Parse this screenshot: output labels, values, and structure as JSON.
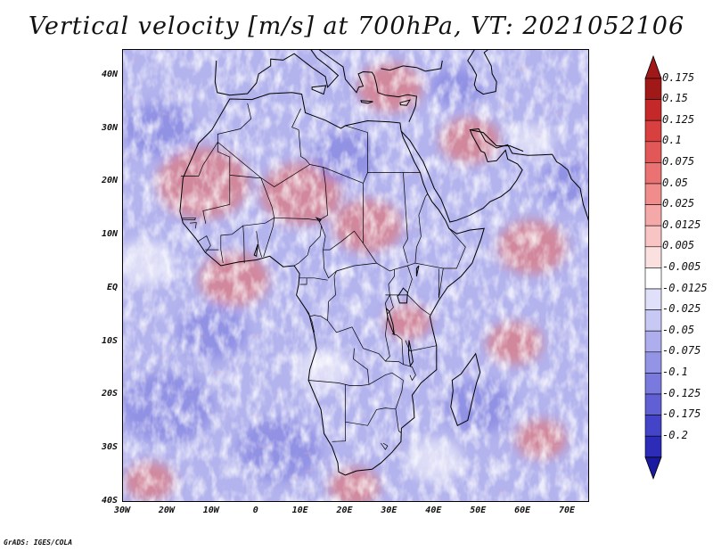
{
  "title": "Vertical velocity [m/s] at 700hPa, VT: 2021052106",
  "map": {
    "region": "Africa and surrounding oceans",
    "lat_range": [
      -40,
      45
    ],
    "lon_range": [
      -30,
      75
    ],
    "lat_ticks": [
      {
        "value": 40,
        "label": "40N"
      },
      {
        "value": 30,
        "label": "30N"
      },
      {
        "value": 20,
        "label": "20N"
      },
      {
        "value": 10,
        "label": "10N"
      },
      {
        "value": 0,
        "label": "EQ"
      },
      {
        "value": -10,
        "label": "10S"
      },
      {
        "value": -20,
        "label": "20S"
      },
      {
        "value": -30,
        "label": "30S"
      },
      {
        "value": -40,
        "label": "40S"
      }
    ],
    "lon_ticks": [
      {
        "value": -30,
        "label": "30W"
      },
      {
        "value": -20,
        "label": "20W"
      },
      {
        "value": -10,
        "label": "10W"
      },
      {
        "value": 0,
        "label": "0"
      },
      {
        "value": 10,
        "label": "10E"
      },
      {
        "value": 20,
        "label": "20E"
      },
      {
        "value": 30,
        "label": "30E"
      },
      {
        "value": 40,
        "label": "40E"
      },
      {
        "value": 50,
        "label": "50E"
      },
      {
        "value": 60,
        "label": "60E"
      },
      {
        "value": 70,
        "label": "70E"
      }
    ]
  },
  "colorbar": {
    "levels": [
      {
        "label": "0.175",
        "color": "#a01818"
      },
      {
        "label": "0.15",
        "color": "#c42828"
      },
      {
        "label": "0.125",
        "color": "#d84040"
      },
      {
        "label": "0.1",
        "color": "#e25858"
      },
      {
        "label": "0.075",
        "color": "#ea7272"
      },
      {
        "label": "0.05",
        "color": "#f08c8c"
      },
      {
        "label": "0.025",
        "color": "#f4a8a8"
      },
      {
        "label": "0.0125",
        "color": "#f8c4c4"
      },
      {
        "label": "0.005",
        "color": "#fbe0e0"
      },
      {
        "label": "-0.005",
        "color": "#ffffff"
      },
      {
        "label": "-0.0125",
        "color": "#e0e0fa"
      },
      {
        "label": "-0.025",
        "color": "#c8c8f4"
      },
      {
        "label": "-0.05",
        "color": "#aeaeee"
      },
      {
        "label": "-0.075",
        "color": "#9494e6"
      },
      {
        "label": "-0.1",
        "color": "#7a7ade"
      },
      {
        "label": "-0.125",
        "color": "#6060d4"
      },
      {
        "label": "-0.175",
        "color": "#4444c8"
      },
      {
        "label": "-0.2",
        "color": "#2c2cb8"
      }
    ],
    "top_arrow_color": "#a01818",
    "bottom_arrow_color": "#1a1aa0",
    "bottom_extra_color": "#3636bc"
  },
  "credit": "GrADS: IGES/COLA",
  "palette": {
    "field_base": "#b3b3ee",
    "red_patch": "#e27272",
    "blue_patch": "#8080e0",
    "coast": "#000000"
  }
}
